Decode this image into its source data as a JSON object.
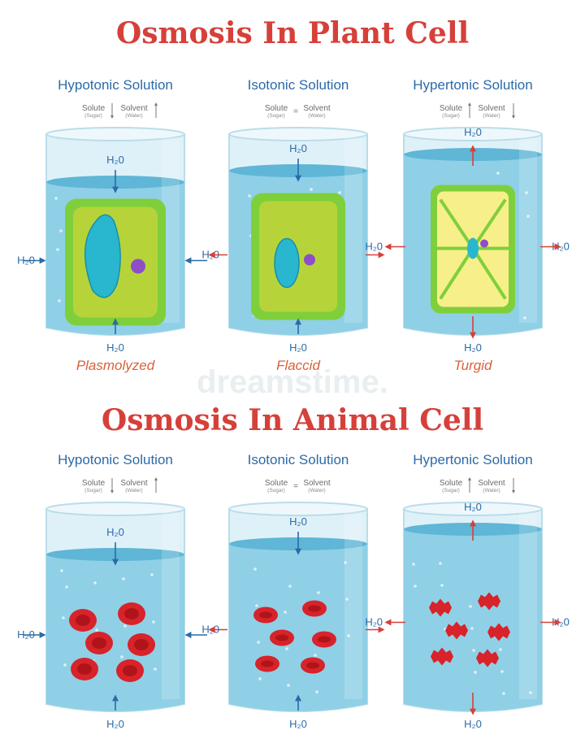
{
  "plant": {
    "title": "Osmosis In Plant Cell",
    "columns": [
      {
        "solution": "Hypotonic Solution",
        "solute": "Solute",
        "solute_sub": "(Sugar)",
        "solvent": "Solvent",
        "solvent_sub": "(Water)",
        "state": "Plasmolyzed"
      },
      {
        "solution": "Isotonic Solution",
        "solute": "Solute",
        "solute_sub": "(Sugar)",
        "solvent": "Solvent",
        "solvent_sub": "(Water)",
        "state": "Flaccid"
      },
      {
        "solution": "Hypertonic Solution",
        "solute": "Solute",
        "solute_sub": "(Sugar)",
        "solvent": "Solvent",
        "solvent_sub": "(Water)",
        "state": "Turgid"
      }
    ]
  },
  "animal": {
    "title": "Osmosis In Animal Cell",
    "columns": [
      {
        "solution": "Hypotonic Solution",
        "solute": "Solute",
        "solute_sub": "(Sugar)",
        "solvent": "Solvent",
        "solvent_sub": "(Water)"
      },
      {
        "solution": "Isotonic Solution",
        "solute": "Solute",
        "solute_sub": "(Sugar)",
        "solvent": "Solvent",
        "solvent_sub": "(Water)"
      },
      {
        "solution": "Hypertonic Solution",
        "solute": "Solute",
        "solute_sub": "(Sugar)",
        "solvent": "Solvent",
        "solvent_sub": "(Water)"
      }
    ]
  },
  "h2o": "H₂0",
  "watermark": "dreamstime.",
  "colors": {
    "title": "#d6403a",
    "label": "#2b6aa8",
    "water": "#8fd0e6",
    "glass": "#dff1f8",
    "cell_wall": "#7fcf3c",
    "cytoplasm": "#b6d43a",
    "turgid_cytoplasm": "#f7f08a",
    "vacuole": "#29b6cf",
    "nucleus": "#8e4ec6",
    "blood_cell": "#d8232a",
    "arrow_in": "#2b6aa8",
    "arrow_out": "#d6403a"
  }
}
